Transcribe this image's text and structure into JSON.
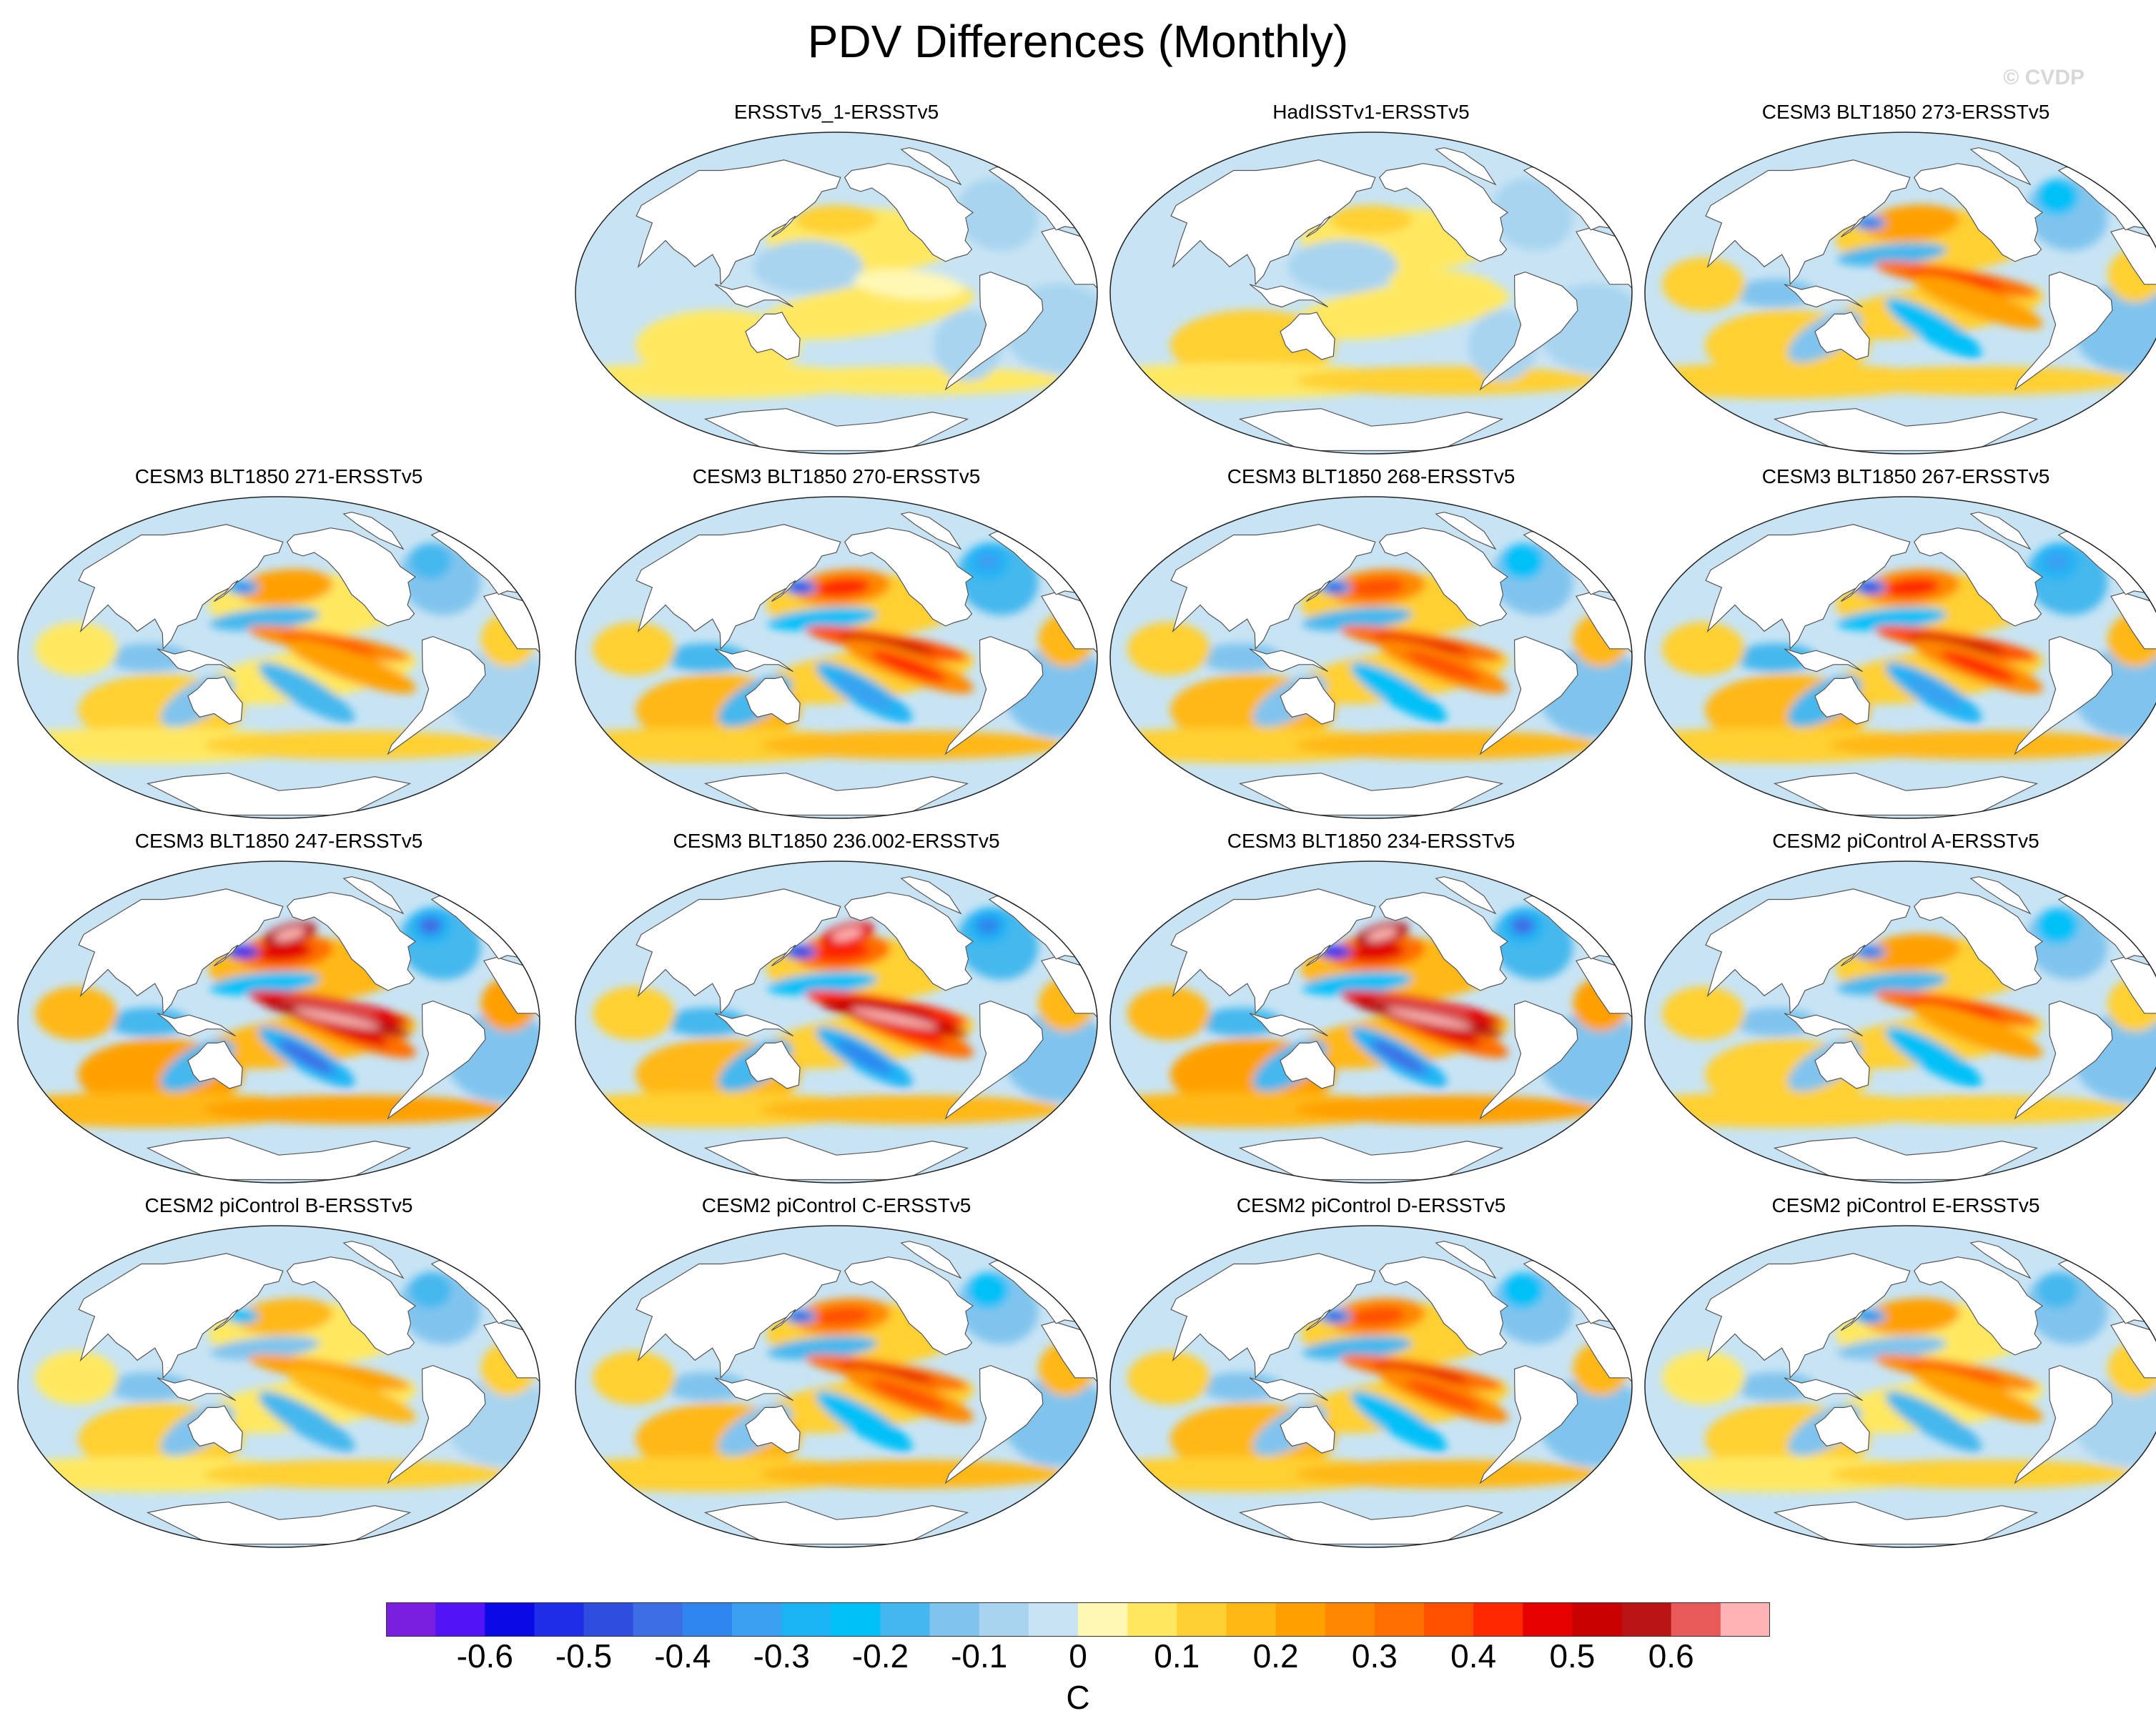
{
  "title": "PDV Differences (Monthly)",
  "copyright": "© CVDP",
  "units": "C",
  "colorbar": {
    "colors": [
      "#7a1ee0",
      "#5014f5",
      "#0a0ae6",
      "#1e2ee8",
      "#2e4ede",
      "#3e6ee6",
      "#2e86ee",
      "#3aa0f0",
      "#1ab4f5",
      "#00c0f8",
      "#44b8ee",
      "#80c4ee",
      "#a8d4f0",
      "#c8e4f4",
      "#fff8b4",
      "#ffe860",
      "#ffd030",
      "#ffb814",
      "#ffa000",
      "#ff8800",
      "#ff6e00",
      "#ff5000",
      "#ff2800",
      "#e60000",
      "#c80000",
      "#b81414",
      "#e85a5a",
      "#ffb4b4"
    ],
    "tick_labels": [
      "-0.6",
      "-0.5",
      "-0.4",
      "-0.3",
      "-0.2",
      "-0.1",
      "0",
      "0.1",
      "0.2",
      "0.3",
      "0.4",
      "0.5",
      "0.6"
    ],
    "tick_values": [
      -0.6,
      -0.5,
      -0.4,
      -0.3,
      -0.2,
      -0.1,
      0,
      0.1,
      0.2,
      0.3,
      0.4,
      0.5,
      0.6
    ],
    "range": [
      -0.7,
      0.7
    ]
  },
  "panels": [
    {
      "title": "ERSSTv5_1-ERSSTv5",
      "intensity": 0.45,
      "pattern": "weak"
    },
    {
      "title": "HadISSTv1-ERSSTv5",
      "intensity": 0.5,
      "pattern": "weak"
    },
    {
      "title": "CESM3 BLT1850 273-ERSSTv5",
      "intensity": 0.7,
      "pattern": "model"
    },
    {
      "title": "CESM3 BLT1850 271-ERSSTv5",
      "intensity": 0.65,
      "pattern": "model"
    },
    {
      "title": "CESM3 BLT1850 270-ERSSTv5",
      "intensity": 0.85,
      "pattern": "model"
    },
    {
      "title": "CESM3 BLT1850 268-ERSSTv5",
      "intensity": 0.75,
      "pattern": "model"
    },
    {
      "title": "CESM3 BLT1850 267-ERSSTv5",
      "intensity": 0.85,
      "pattern": "model"
    },
    {
      "title": "CESM3 BLT1850 247-ERSSTv5",
      "intensity": 1.0,
      "pattern": "strong"
    },
    {
      "title": "CESM3 BLT1850 236.002-ERSSTv5",
      "intensity": 0.9,
      "pattern": "strong"
    },
    {
      "title": "CESM3 BLT1850 234-ERSSTv5",
      "intensity": 1.0,
      "pattern": "strong"
    },
    {
      "title": "CESM2 piControl A-ERSSTv5",
      "intensity": 0.7,
      "pattern": "model"
    },
    {
      "title": "CESM2 piControl B-ERSSTv5",
      "intensity": 0.55,
      "pattern": "model"
    },
    {
      "title": "CESM2 piControl C-ERSSTv5",
      "intensity": 0.75,
      "pattern": "model"
    },
    {
      "title": "CESM2 piControl D-ERSSTv5",
      "intensity": 0.75,
      "pattern": "model"
    },
    {
      "title": "CESM2 piControl E-ERSSTv5",
      "intensity": 0.6,
      "pattern": "model"
    }
  ]
}
